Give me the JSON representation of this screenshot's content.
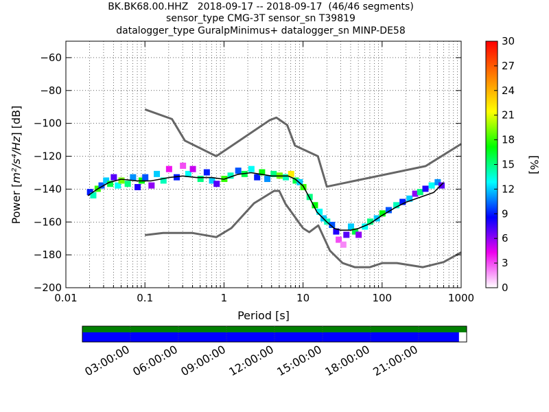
{
  "chart_data": {
    "type": "heatmap",
    "title_lines": [
      "BK.BK68.00.HHZ   2018-09-17 -- 2018-09-17  (46/46 segments)",
      "sensor_type CMG-3T sensor_sn T39819",
      "datalogger_type GuralpMinimus+ datalogger_sn MINP-DE58"
    ],
    "xlabel": "Period [s]",
    "ylabel_prefix": "Power [",
    "ylabel_units": "m²/s⁴/Hz",
    "ylabel_suffix": "] [dB]",
    "xscale": "log",
    "xlim": [
      0.01,
      1000
    ],
    "ylim": [
      -200,
      -50
    ],
    "x_ticks": [
      0.01,
      0.1,
      1,
      10,
      100,
      1000
    ],
    "x_tick_labels": [
      "0.01",
      "0.1",
      "1",
      "10",
      "100",
      "1000"
    ],
    "y_ticks": [
      -200,
      -180,
      -160,
      -140,
      -120,
      -100,
      -80,
      -60
    ],
    "y_tick_labels": [
      "−200",
      "−180",
      "−160",
      "−140",
      "−120",
      "−100",
      "−80",
      "−60"
    ],
    "grid": true,
    "colorbar": {
      "label": "[%]",
      "range": [
        0,
        30
      ],
      "ticks": [
        0,
        3,
        6,
        9,
        12,
        15,
        18,
        21,
        24,
        27,
        30
      ],
      "tick_labels": [
        "0",
        "3",
        "6",
        "9",
        "12",
        "15",
        "18",
        "21",
        "24",
        "27",
        "30"
      ],
      "colormap": [
        "#ffffff",
        "#ee00ee",
        "#0000ff",
        "#00ffff",
        "#00ff00",
        "#ffff00",
        "#ff8000",
        "#ff0000"
      ]
    },
    "nhnm": {
      "name": "NHNM",
      "color": "#666666",
      "x": [
        0.1,
        0.22,
        0.32,
        0.8,
        3.8,
        4.6,
        6.3,
        7.9,
        15.4,
        20,
        354.8,
        1000
      ],
      "y": [
        -91.5,
        -97.4,
        -110.5,
        -120,
        -98,
        -96.5,
        -101,
        -113.5,
        -120,
        -138.5,
        -126,
        -112.5
      ]
    },
    "nlnm": {
      "name": "NLNM",
      "color": "#666666",
      "x": [
        0.1,
        0.17,
        0.4,
        0.8,
        1.24,
        2.4,
        4.3,
        5.0,
        6.0,
        10.0,
        12.0,
        15.6,
        21.9,
        31.6,
        45,
        70,
        101,
        154,
        328,
        600,
        1000
      ],
      "y": [
        -168,
        -166.7,
        -166.7,
        -169.2,
        -163.7,
        -148.6,
        -141.1,
        -141.1,
        -149,
        -163.8,
        -166.2,
        -162.1,
        -177.5,
        -185,
        -187.5,
        -187.5,
        -185,
        -185,
        -187.5,
        -184.4,
        -178.5
      ],
      "start_x": 0.1
    },
    "mode_curve": {
      "name": "mode",
      "color": "#000000",
      "x": [
        0.019,
        0.025,
        0.035,
        0.05,
        0.08,
        0.12,
        0.2,
        0.3,
        0.45,
        0.7,
        1.0,
        1.5,
        2.2,
        3.0,
        4.0,
        5.0,
        6.5,
        8.0,
        10.0,
        12.0,
        15.0,
        20.0,
        25.0,
        30.0,
        40.0,
        50.0,
        70.0,
        100.0,
        150.0,
        200.0,
        300.0,
        450.0,
        600.0
      ],
      "y": [
        -144,
        -140,
        -136,
        -134,
        -135,
        -135,
        -133,
        -132,
        -133,
        -133,
        -134,
        -131,
        -130,
        -131,
        -132,
        -132,
        -132,
        -134,
        -138,
        -145,
        -154,
        -160,
        -164,
        -165,
        -165,
        -164,
        -161,
        -156,
        -151,
        -148,
        -145,
        -142,
        -136
      ]
    },
    "psd_cells": [
      {
        "x": 0.02,
        "y": -142,
        "pct": 9
      },
      {
        "x": 0.022,
        "y": -144,
        "pct": 14
      },
      {
        "x": 0.025,
        "y": -140,
        "pct": 18
      },
      {
        "x": 0.028,
        "y": -138,
        "pct": 10
      },
      {
        "x": 0.032,
        "y": -135,
        "pct": 12
      },
      {
        "x": 0.036,
        "y": -137,
        "pct": 16
      },
      {
        "x": 0.04,
        "y": -133,
        "pct": 7
      },
      {
        "x": 0.045,
        "y": -138,
        "pct": 13
      },
      {
        "x": 0.05,
        "y": -135,
        "pct": 19
      },
      {
        "x": 0.06,
        "y": -137,
        "pct": 15
      },
      {
        "x": 0.07,
        "y": -133,
        "pct": 11
      },
      {
        "x": 0.08,
        "y": -139,
        "pct": 8
      },
      {
        "x": 0.09,
        "y": -135,
        "pct": 17
      },
      {
        "x": 0.1,
        "y": -133,
        "pct": 10
      },
      {
        "x": 0.12,
        "y": -138,
        "pct": 6
      },
      {
        "x": 0.14,
        "y": -131,
        "pct": 12
      },
      {
        "x": 0.17,
        "y": -135,
        "pct": 14
      },
      {
        "x": 0.2,
        "y": -128,
        "pct": 4
      },
      {
        "x": 0.25,
        "y": -133,
        "pct": 9
      },
      {
        "x": 0.3,
        "y": -126,
        "pct": 3
      },
      {
        "x": 0.35,
        "y": -131,
        "pct": 13
      },
      {
        "x": 0.4,
        "y": -128,
        "pct": 5
      },
      {
        "x": 0.5,
        "y": -134,
        "pct": 15
      },
      {
        "x": 0.6,
        "y": -130,
        "pct": 9
      },
      {
        "x": 0.7,
        "y": -135,
        "pct": 12
      },
      {
        "x": 0.8,
        "y": -137,
        "pct": 7
      },
      {
        "x": 1.0,
        "y": -134,
        "pct": 18
      },
      {
        "x": 1.2,
        "y": -132,
        "pct": 14
      },
      {
        "x": 1.5,
        "y": -129,
        "pct": 10
      },
      {
        "x": 1.8,
        "y": -131,
        "pct": 16
      },
      {
        "x": 2.2,
        "y": -128,
        "pct": 13
      },
      {
        "x": 2.6,
        "y": -133,
        "pct": 9
      },
      {
        "x": 3.0,
        "y": -130,
        "pct": 17
      },
      {
        "x": 3.5,
        "y": -134,
        "pct": 11
      },
      {
        "x": 4.2,
        "y": -131,
        "pct": 15
      },
      {
        "x": 5.0,
        "y": -132,
        "pct": 19
      },
      {
        "x": 6.0,
        "y": -133,
        "pct": 14
      },
      {
        "x": 7.0,
        "y": -131,
        "pct": 22
      },
      {
        "x": 8.0,
        "y": -135,
        "pct": 16
      },
      {
        "x": 9.0,
        "y": -136,
        "pct": 12
      },
      {
        "x": 10.0,
        "y": -139,
        "pct": 18
      },
      {
        "x": 12.0,
        "y": -145,
        "pct": 15
      },
      {
        "x": 14.0,
        "y": -150,
        "pct": 17
      },
      {
        "x": 16.0,
        "y": -154,
        "pct": 13
      },
      {
        "x": 18.0,
        "y": -158,
        "pct": 12
      },
      {
        "x": 20.0,
        "y": -160,
        "pct": 14
      },
      {
        "x": 23.0,
        "y": -162,
        "pct": 10
      },
      {
        "x": 26.0,
        "y": -166,
        "pct": 8
      },
      {
        "x": 28.0,
        "y": -171,
        "pct": 3
      },
      {
        "x": 32.0,
        "y": -174,
        "pct": 2
      },
      {
        "x": 35.0,
        "y": -168,
        "pct": 7
      },
      {
        "x": 40.0,
        "y": -163,
        "pct": 12
      },
      {
        "x": 45.0,
        "y": -166,
        "pct": 16
      },
      {
        "x": 50.0,
        "y": -168,
        "pct": 6
      },
      {
        "x": 60.0,
        "y": -163,
        "pct": 13
      },
      {
        "x": 70.0,
        "y": -160,
        "pct": 15
      },
      {
        "x": 85.0,
        "y": -158,
        "pct": 12
      },
      {
        "x": 100.0,
        "y": -155,
        "pct": 17
      },
      {
        "x": 120.0,
        "y": -153,
        "pct": 10
      },
      {
        "x": 150.0,
        "y": -150,
        "pct": 14
      },
      {
        "x": 180.0,
        "y": -148,
        "pct": 9
      },
      {
        "x": 220.0,
        "y": -146,
        "pct": 12
      },
      {
        "x": 260.0,
        "y": -143,
        "pct": 6
      },
      {
        "x": 300.0,
        "y": -142,
        "pct": 15
      },
      {
        "x": 350.0,
        "y": -140,
        "pct": 8
      },
      {
        "x": 420.0,
        "y": -138,
        "pct": 13
      },
      {
        "x": 500.0,
        "y": -136,
        "pct": 11
      },
      {
        "x": 560.0,
        "y": -138,
        "pct": 7
      }
    ],
    "coverage": {
      "time_ticks": [
        "03:00:00",
        "06:00:00",
        "09:00:00",
        "12:00:00",
        "15:00:00",
        "18:00:00",
        "21:00:00"
      ],
      "top_bar_color": "#008000",
      "bottom_bar_color": "#0000ff",
      "top_fraction": 1.0,
      "bottom_fraction": 0.98
    }
  }
}
